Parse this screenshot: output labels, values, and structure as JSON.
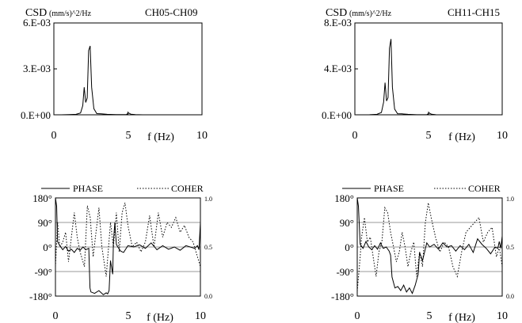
{
  "chart_data": [
    {
      "type": "line",
      "panel": "csd",
      "title": "CH05-CH09",
      "ylabel_main": "CSD",
      "ylabel_unit": "(mm/s)^2/Hz",
      "xlabel": "f (Hz)",
      "xlim": [
        0,
        10
      ],
      "ylim": [
        0,
        0.006
      ],
      "x_ticks": [
        "0",
        "5",
        "10"
      ],
      "y_ticks": [
        "0.E+00",
        "3.E-03",
        "6.E-03"
      ],
      "series": [
        {
          "x": [
            0,
            0.5,
            1,
            1.5,
            1.8,
            1.95,
            2.05,
            2.15,
            2.25,
            2.35,
            2.45,
            2.55,
            2.7,
            2.9,
            3.2,
            3.6,
            4.2,
            4.9,
            5.05,
            5.2,
            5.5,
            6,
            7,
            8,
            9,
            10
          ],
          "y": [
            0,
            0,
            1e-05,
            3e-05,
            0.00012,
            0.0006,
            0.0018,
            0.0008,
            0.0011,
            0.0042,
            0.0045,
            0.0018,
            0.0004,
            8e-05,
            6e-05,
            3e-05,
            1e-05,
            2e-05,
            0.00012,
            4e-05,
            1e-05,
            0,
            0,
            0,
            0,
            0
          ]
        }
      ]
    },
    {
      "type": "line",
      "panel": "csd",
      "title": "CH11-CH15",
      "ylabel_main": "CSD",
      "ylabel_unit": "(mm/s)^2/Hz",
      "xlabel": "f (Hz)",
      "xlim": [
        0,
        10
      ],
      "ylim": [
        0,
        0.008
      ],
      "x_ticks": [
        "0",
        "5",
        "10"
      ],
      "y_ticks": [
        "0.E+00",
        "4.E-03",
        "8.E-03"
      ],
      "series": [
        {
          "x": [
            0,
            0.5,
            1,
            1.5,
            1.8,
            1.95,
            2.05,
            2.15,
            2.25,
            2.35,
            2.45,
            2.55,
            2.7,
            2.9,
            3.2,
            3.6,
            4.2,
            4.9,
            5.05,
            5.2,
            5.5,
            6,
            7,
            8,
            9,
            10
          ],
          "y": [
            0,
            0,
            1e-05,
            4e-05,
            0.0002,
            0.0011,
            0.0028,
            0.0012,
            0.0015,
            0.0058,
            0.0066,
            0.0024,
            0.0005,
            0.0001,
            8e-05,
            4e-05,
            1e-05,
            2e-05,
            0.00016,
            5e-05,
            1e-05,
            0,
            0,
            0,
            0,
            0
          ]
        }
      ]
    },
    {
      "type": "line",
      "panel": "phase",
      "xlabel": "f (Hz)",
      "xlim": [
        0,
        10
      ],
      "ylim": [
        -180,
        180
      ],
      "y2lim": [
        0,
        1
      ],
      "x_ticks": [
        "0",
        "5",
        "10"
      ],
      "y_ticks": [
        "180°",
        "90°",
        "0°",
        "-90°",
        "-180°"
      ],
      "y2_ticks": [
        "1.0",
        "0.5",
        "0.0"
      ],
      "legend": [
        "PHASE",
        "COHER"
      ],
      "series": [
        {
          "name": "PHASE",
          "axis": "left",
          "x": [
            0,
            0.08,
            0.15,
            0.3,
            0.5,
            0.7,
            0.9,
            1.1,
            1.3,
            1.5,
            1.7,
            1.9,
            2.1,
            2.3,
            2.38,
            2.45,
            2.7,
            3,
            3.3,
            3.5,
            3.6,
            3.7,
            3.8,
            3.95,
            4,
            4.1,
            4.2,
            4.3,
            4.5,
            4.7,
            5,
            5.4,
            5.8,
            6.2,
            6.6,
            7,
            7.4,
            7.8,
            8.2,
            8.6,
            9,
            9.3,
            9.6,
            9.8,
            9.9,
            10
          ],
          "y": [
            180,
            150,
            20,
            5,
            -10,
            2,
            -15,
            -8,
            -20,
            -5,
            -12,
            0,
            -10,
            -5,
            -150,
            -165,
            -170,
            -160,
            -175,
            -168,
            -172,
            -160,
            -50,
            -100,
            20,
            90,
            10,
            0,
            -15,
            -20,
            5,
            0,
            8,
            -5,
            15,
            -10,
            5,
            -8,
            0,
            -12,
            5,
            0,
            -5,
            5,
            -10,
            90
          ]
        },
        {
          "name": "COHER",
          "axis": "right",
          "x": [
            0,
            0.15,
            0.3,
            0.5,
            0.7,
            0.9,
            1.1,
            1.3,
            1.5,
            1.7,
            2,
            2.2,
            2.4,
            2.6,
            2.8,
            3,
            3.2,
            3.5,
            3.8,
            4,
            4.2,
            4.4,
            4.6,
            4.8,
            5,
            5.3,
            5.6,
            5.9,
            6.2,
            6.5,
            6.8,
            7.1,
            7.4,
            7.7,
            8,
            8.3,
            8.6,
            8.9,
            9.2,
            9.5,
            9.8,
            10
          ],
          "y": [
            0.3,
            0.75,
            0.5,
            0.55,
            0.65,
            0.35,
            0.6,
            0.85,
            0.6,
            0.45,
            0.3,
            0.92,
            0.8,
            0.4,
            0.65,
            0.9,
            0.5,
            0.2,
            0.75,
            0.5,
            0.85,
            0.45,
            0.85,
            0.95,
            0.72,
            0.5,
            0.55,
            0.45,
            0.55,
            0.82,
            0.5,
            0.85,
            0.6,
            0.75,
            0.7,
            0.8,
            0.65,
            0.72,
            0.6,
            0.55,
            0.4,
            0.3
          ]
        }
      ]
    },
    {
      "type": "line",
      "panel": "phase",
      "xlabel": "f (Hz)",
      "xlim": [
        0,
        10
      ],
      "ylim": [
        -180,
        180
      ],
      "y2lim": [
        0,
        1
      ],
      "x_ticks": [
        "0",
        "5",
        "10"
      ],
      "y_ticks": [
        "180°",
        "90°",
        "0°",
        "-90°",
        "-180°"
      ],
      "y2_ticks": [
        "1.0",
        "0.5",
        "0.0"
      ],
      "legend": [
        "PHASE",
        "COHER"
      ],
      "series": [
        {
          "name": "PHASE",
          "axis": "left",
          "x": [
            0,
            0.08,
            0.2,
            0.4,
            0.6,
            0.8,
            1,
            1.2,
            1.4,
            1.6,
            1.8,
            2,
            2.2,
            2.3,
            2.4,
            2.6,
            2.8,
            3,
            3.2,
            3.4,
            3.6,
            3.8,
            4,
            4.2,
            4.3,
            4.5,
            4.8,
            5,
            5.3,
            5.6,
            5.9,
            6.2,
            6.5,
            6.8,
            7.1,
            7.4,
            7.7,
            8,
            8.3,
            8.6,
            8.9,
            9.2,
            9.5,
            9.7,
            9.8,
            9.9,
            10
          ],
          "y": [
            180,
            150,
            10,
            -5,
            20,
            0,
            -10,
            5,
            -8,
            15,
            -5,
            0,
            -15,
            -30,
            -110,
            -150,
            -145,
            -160,
            -140,
            -165,
            -150,
            -170,
            -140,
            -100,
            -20,
            -50,
            15,
            0,
            10,
            -8,
            15,
            0,
            5,
            -15,
            5,
            -10,
            10,
            -20,
            30,
            10,
            -5,
            -25,
            0,
            -5,
            20,
            -5,
            40
          ]
        },
        {
          "name": "COHER",
          "axis": "right",
          "x": [
            0,
            0.15,
            0.3,
            0.5,
            0.7,
            0.9,
            1.1,
            1.3,
            1.5,
            1.7,
            1.9,
            2.1,
            2.3,
            2.5,
            2.7,
            2.9,
            3.1,
            3.3,
            3.5,
            3.7,
            3.9,
            4.1,
            4.3,
            4.5,
            4.7,
            4.9,
            5.1,
            5.4,
            5.7,
            6,
            6.3,
            6.6,
            6.9,
            7.2,
            7.5,
            7.8,
            8.1,
            8.4,
            8.7,
            9,
            9.3,
            9.6,
            9.8,
            10
          ],
          "y": [
            0.05,
            0.3,
            0.6,
            0.8,
            0.55,
            0.6,
            0.4,
            0.2,
            0.45,
            0.55,
            0.9,
            0.85,
            0.65,
            0.5,
            0.35,
            0.45,
            0.65,
            0.5,
            0.3,
            0.45,
            0.55,
            0.2,
            0.45,
            0.3,
            0.75,
            0.95,
            0.8,
            0.6,
            0.45,
            0.55,
            0.5,
            0.3,
            0.2,
            0.45,
            0.65,
            0.7,
            0.75,
            0.8,
            0.55,
            0.65,
            0.7,
            0.4,
            0.5,
            0.3
          ]
        }
      ]
    }
  ]
}
